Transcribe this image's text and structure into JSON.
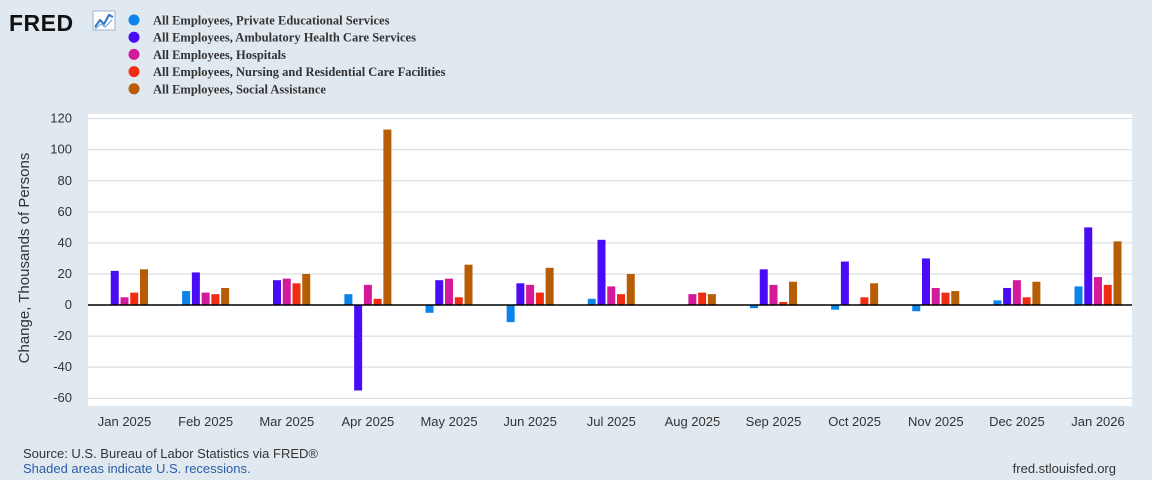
{
  "brand": {
    "logo_text": "FRED"
  },
  "colors": {
    "background": "#e1e9f0",
    "plot_background": "#ffffff",
    "gridline": "#d3d9df",
    "zero_line": "#000000"
  },
  "chart_data": {
    "type": "bar",
    "title": "",
    "xlabel": "",
    "ylabel": "Change, Thousands of Persons",
    "ylim": [
      -60,
      120
    ],
    "yticks": [
      -60,
      -40,
      -20,
      0,
      20,
      40,
      60,
      80,
      100,
      120
    ],
    "grid": true,
    "legend_position": "top-left",
    "categories": [
      "Jan 2025",
      "Feb 2025",
      "Mar 2025",
      "Apr 2025",
      "May 2025",
      "Jun 2025",
      "Jul 2025",
      "Aug 2025",
      "Sep 2025",
      "Oct 2025",
      "Nov 2025",
      "Dec 2025",
      "Jan 2026"
    ],
    "series": [
      {
        "name": "All Employees, Private Educational Services",
        "color": "#0a84ea",
        "values": [
          0,
          9,
          0,
          7,
          -5,
          -11,
          4,
          0,
          -2,
          -3,
          -4,
          3,
          12
        ]
      },
      {
        "name": "All Employees, Ambulatory Health Care Services",
        "color": "#4a0cf5",
        "values": [
          22,
          21,
          16,
          -55,
          16,
          14,
          42,
          0,
          23,
          28,
          30,
          11,
          50
        ]
      },
      {
        "name": "All Employees, Hospitals",
        "color": "#d21a9a",
        "values": [
          5,
          8,
          17,
          13,
          17,
          13,
          12,
          7,
          13,
          0,
          11,
          16,
          18
        ]
      },
      {
        "name": "All Employees, Nursing and Residential Care Facilities",
        "color": "#f02c12",
        "values": [
          8,
          7,
          14,
          4,
          5,
          8,
          7,
          8,
          2,
          5,
          8,
          5,
          13
        ]
      },
      {
        "name": "All Employees, Social Assistance",
        "color": "#b65d06",
        "values": [
          23,
          11,
          20,
          113,
          26,
          24,
          20,
          7,
          15,
          14,
          9,
          15,
          41
        ]
      }
    ]
  },
  "footer": {
    "source": "Source: U.S. Bureau of Labor Statistics via FRED®",
    "shaded": "Shaded areas indicate U.S. recessions.",
    "url": "fred.stlouisfed.org"
  }
}
